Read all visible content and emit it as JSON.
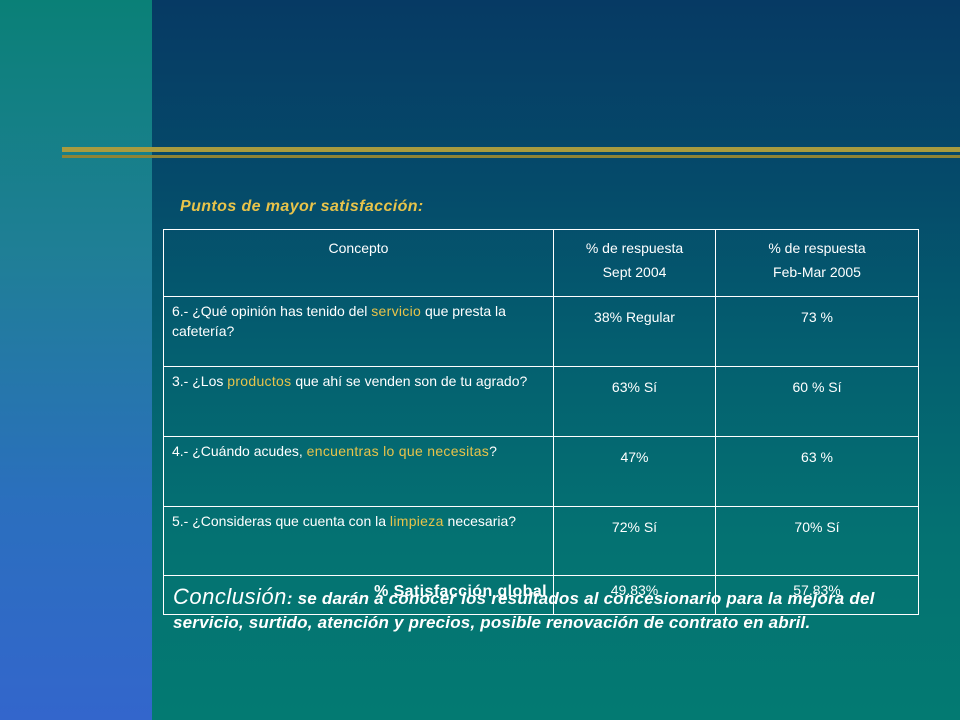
{
  "section_title": "Puntos de mayor satisfacción:",
  "table": {
    "headers": {
      "concepto": "Concepto",
      "col2_line1": "% de respuesta",
      "col2_line2": "Sept 2004",
      "col3_line1": "% de respuesta",
      "col3_line2": "Feb-Mar 2005"
    },
    "rows": [
      {
        "q_pre": "6.-  ¿Qué opinión has tenido del ",
        "q_hl": "servicio",
        "q_post": " que presta la cafetería?",
        "sept_2004": "38%  Regular",
        "feb_mar_2005": "73 %"
      },
      {
        "q_pre": "3.-  ¿Los ",
        "q_hl": "productos",
        "q_post": " que ahí se venden son de tu agrado?",
        "sept_2004": "63%  Sí",
        "feb_mar_2005": "60 % Sí"
      },
      {
        "q_pre": "4.-  ¿Cuándo acudes, ",
        "q_hl": "encuentras lo que necesitas",
        "q_post": "?",
        "sept_2004": "47%",
        "feb_mar_2005": "63 %"
      },
      {
        "q_pre": "5.-  ¿Consideras que cuenta con la ",
        "q_hl": "limpieza",
        "q_post": " necesaria?",
        "sept_2004": "72% Sí",
        "feb_mar_2005": "70% Sí"
      }
    ],
    "total": {
      "label": "% Satisfacción global",
      "sept_2004": "49.83%",
      "feb_mar_2005": "57.83%"
    }
  },
  "conclusion": {
    "lead": "Conclusión",
    "text": ": se darán a conocer los resultados al concesionario para la mejora del servicio, surtido, atención y precios, posible renovación de contrato en abril."
  },
  "colors": {
    "highlight": "#e8c34a",
    "rule": "#a89b3f",
    "left_panel": "#3366cc",
    "background": "#047272"
  }
}
